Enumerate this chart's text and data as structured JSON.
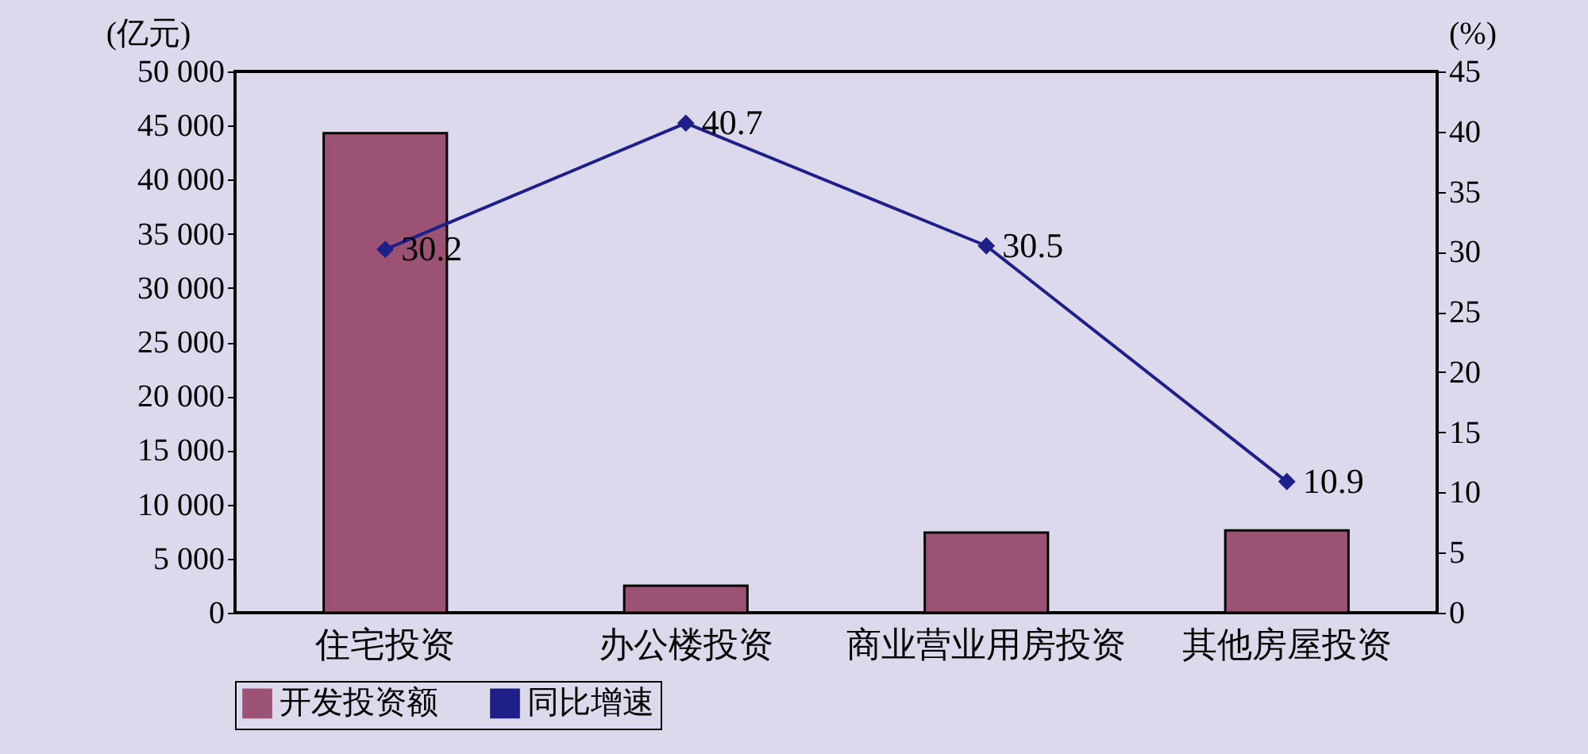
{
  "chart_data": {
    "type": "bar",
    "categories": [
      "住宅投资",
      "办公楼投资",
      "商业营业用房投资",
      "其他房屋投资"
    ],
    "series": [
      {
        "name": "开发投资额",
        "color": "#9b5275",
        "values": [
          44300,
          2500,
          7400,
          7600
        ]
      },
      {
        "name": "同比增速",
        "type": "line",
        "axis": "y2",
        "color": "#1f1f8a",
        "values": [
          30.2,
          40.7,
          30.5,
          10.9
        ],
        "value_labels": [
          "30.2",
          "40.7",
          "30.5",
          "10.9"
        ]
      }
    ],
    "ylabel": "(亿元)",
    "y2label": "(%)",
    "ylim": [
      0,
      50000
    ],
    "yticks": [
      0,
      5000,
      10000,
      15000,
      20000,
      25000,
      30000,
      35000,
      40000,
      45000,
      50000
    ],
    "y2lim": [
      0,
      45
    ],
    "y2ticks": [
      0,
      5,
      10,
      15,
      20,
      25,
      30,
      35,
      40,
      45
    ],
    "marker": "diamond",
    "legend": "bottom",
    "grid": false
  }
}
